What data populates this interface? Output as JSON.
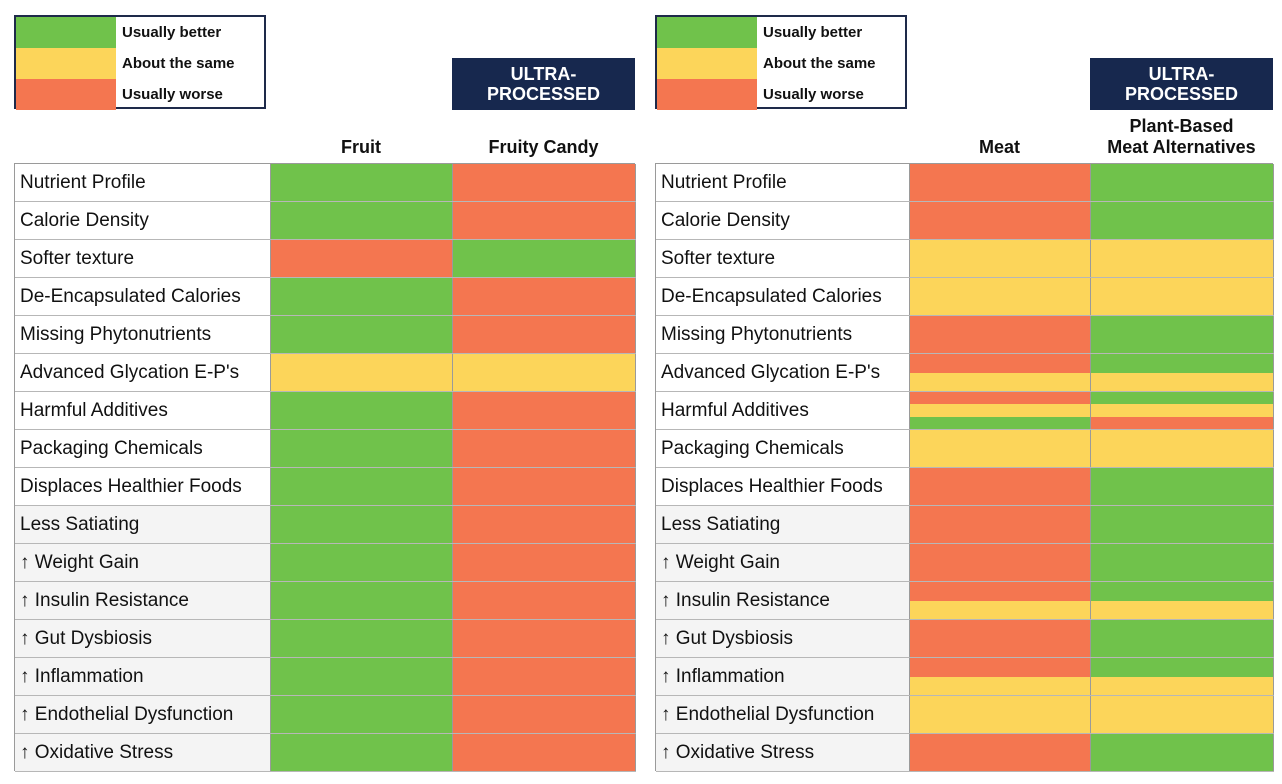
{
  "colors": {
    "green": "#70c24b",
    "yellow": "#fcd55a",
    "red": "#f47650"
  },
  "legend": [
    {
      "key": "green",
      "label": "Usually better"
    },
    {
      "key": "yellow",
      "label": "About the same"
    },
    {
      "key": "red",
      "label": "Usually worse"
    }
  ],
  "chart_data": [
    {
      "type": "table",
      "badge": "ULTRA-\nPROCESSED",
      "columns": [
        "Fruit",
        "Fruity Candy"
      ],
      "rows": [
        {
          "label": "Nutrient Profile",
          "values": [
            [
              "green"
            ],
            [
              "red"
            ]
          ]
        },
        {
          "label": "Calorie Density",
          "values": [
            [
              "green"
            ],
            [
              "red"
            ]
          ]
        },
        {
          "label": "Softer texture",
          "values": [
            [
              "red"
            ],
            [
              "green"
            ]
          ]
        },
        {
          "label": "De-Encapsulated Calories",
          "values": [
            [
              "green"
            ],
            [
              "red"
            ]
          ]
        },
        {
          "label": "Missing Phytonutrients",
          "values": [
            [
              "green"
            ],
            [
              "red"
            ]
          ]
        },
        {
          "label": "Advanced Glycation E-P's",
          "values": [
            [
              "yellow"
            ],
            [
              "yellow"
            ]
          ]
        },
        {
          "label": "Harmful Additives",
          "values": [
            [
              "green"
            ],
            [
              "red"
            ]
          ]
        },
        {
          "label": "Packaging Chemicals",
          "values": [
            [
              "green"
            ],
            [
              "red"
            ]
          ]
        },
        {
          "label": "Displaces Healthier Foods",
          "values": [
            [
              "green"
            ],
            [
              "red"
            ]
          ]
        },
        {
          "label": "Less Satiating",
          "values": [
            [
              "green"
            ],
            [
              "red"
            ]
          ]
        },
        {
          "label": "↑ Weight Gain",
          "values": [
            [
              "green"
            ],
            [
              "red"
            ]
          ]
        },
        {
          "label": "↑ Insulin Resistance",
          "values": [
            [
              "green"
            ],
            [
              "red"
            ]
          ]
        },
        {
          "label": "↑ Gut Dysbiosis",
          "values": [
            [
              "green"
            ],
            [
              "red"
            ]
          ]
        },
        {
          "label": "↑ Inflammation",
          "values": [
            [
              "green"
            ],
            [
              "red"
            ]
          ]
        },
        {
          "label": "↑ Endothelial Dysfunction",
          "values": [
            [
              "green"
            ],
            [
              "red"
            ]
          ]
        },
        {
          "label": "↑ Oxidative Stress",
          "values": [
            [
              "green"
            ],
            [
              "red"
            ]
          ]
        }
      ]
    },
    {
      "type": "table",
      "badge": "ULTRA-\nPROCESSED",
      "columns": [
        "Meat",
        "Plant-Based\nMeat Alternatives"
      ],
      "rows": [
        {
          "label": "Nutrient Profile",
          "values": [
            [
              "red"
            ],
            [
              "green"
            ]
          ]
        },
        {
          "label": "Calorie Density",
          "values": [
            [
              "red"
            ],
            [
              "green"
            ]
          ]
        },
        {
          "label": "Softer texture",
          "values": [
            [
              "yellow"
            ],
            [
              "yellow"
            ]
          ]
        },
        {
          "label": "De-Encapsulated Calories",
          "values": [
            [
              "yellow"
            ],
            [
              "yellow"
            ]
          ]
        },
        {
          "label": "Missing Phytonutrients",
          "values": [
            [
              "red"
            ],
            [
              "green"
            ]
          ]
        },
        {
          "label": "Advanced Glycation E-P's",
          "values": [
            [
              "red",
              "yellow"
            ],
            [
              "green",
              "yellow"
            ]
          ]
        },
        {
          "label": "Harmful Additives",
          "values": [
            [
              "red",
              "yellow",
              "green"
            ],
            [
              "green",
              "yellow",
              "red"
            ]
          ]
        },
        {
          "label": "Packaging Chemicals",
          "values": [
            [
              "yellow"
            ],
            [
              "yellow"
            ]
          ]
        },
        {
          "label": "Displaces Healthier Foods",
          "values": [
            [
              "red"
            ],
            [
              "green"
            ]
          ]
        },
        {
          "label": "Less Satiating",
          "values": [
            [
              "red"
            ],
            [
              "green"
            ]
          ]
        },
        {
          "label": "↑ Weight Gain",
          "values": [
            [
              "red"
            ],
            [
              "green"
            ]
          ]
        },
        {
          "label": "↑ Insulin Resistance",
          "values": [
            [
              "red",
              "yellow"
            ],
            [
              "green",
              "yellow"
            ]
          ]
        },
        {
          "label": "↑ Gut Dysbiosis",
          "values": [
            [
              "red"
            ],
            [
              "green"
            ]
          ]
        },
        {
          "label": "↑ Inflammation",
          "values": [
            [
              "red",
              "yellow"
            ],
            [
              "green",
              "yellow"
            ]
          ]
        },
        {
          "label": "↑ Endothelial Dysfunction",
          "values": [
            [
              "yellow"
            ],
            [
              "yellow"
            ]
          ]
        },
        {
          "label": "↑ Oxidative Stress",
          "values": [
            [
              "red"
            ],
            [
              "green"
            ]
          ]
        }
      ]
    }
  ]
}
